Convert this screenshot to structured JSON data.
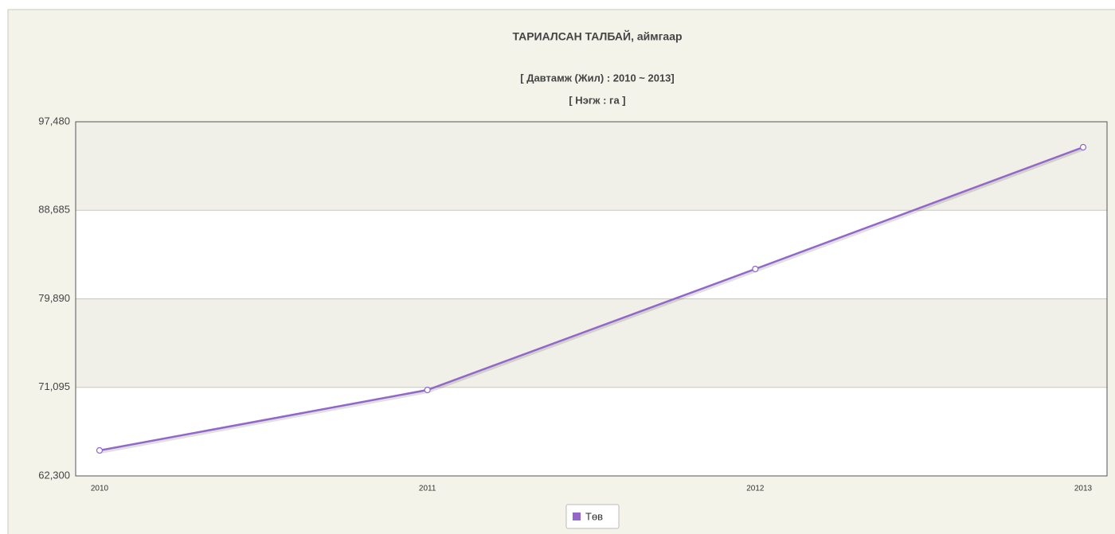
{
  "chart_data": {
    "type": "line",
    "title": "ТАРИАЛСАН ТАЛБАЙ, аймгаар",
    "subtitle": [
      "[ Давтамж (Жил) : 2010 ~ 2013]",
      "[ Нэгж : га ]"
    ],
    "categories": [
      "2010",
      "2011",
      "2012",
      "2013"
    ],
    "series": [
      {
        "name": "Төв",
        "color": "#9466cc",
        "values": [
          64830,
          70838,
          82855,
          94950
        ]
      }
    ],
    "ylim": [
      62300,
      97480
    ],
    "yticks": [
      {
        "value": 62300,
        "label": "62,300"
      },
      {
        "value": 71095,
        "label": "71,095"
      },
      {
        "value": 79890,
        "label": "79,890"
      },
      {
        "value": 88685,
        "label": "88,685"
      },
      {
        "value": 97480,
        "label": "97,480"
      }
    ],
    "grid": true,
    "legend": "bottom"
  }
}
